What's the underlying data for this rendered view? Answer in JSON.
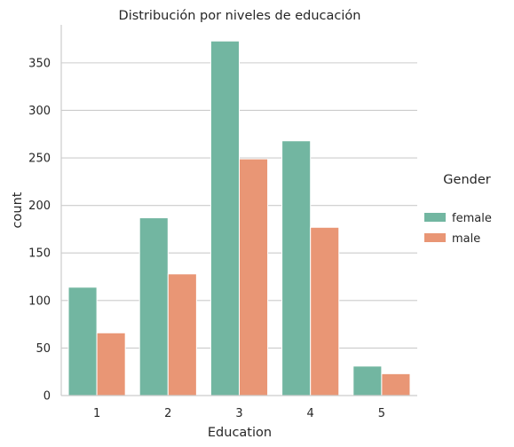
{
  "chart_data": {
    "type": "bar",
    "title": "Distribución por niveles de educación",
    "xlabel": "Education",
    "ylabel": "count",
    "categories": [
      "1",
      "2",
      "3",
      "4",
      "5"
    ],
    "series": [
      {
        "name": "female",
        "color": "#72b6a1",
        "values": [
          114,
          187,
          373,
          268,
          31
        ]
      },
      {
        "name": "male",
        "color": "#e99675",
        "values": [
          66,
          128,
          249,
          177,
          23
        ]
      }
    ],
    "ylim": [
      0,
      390
    ],
    "yticks": [
      0,
      50,
      100,
      150,
      200,
      250,
      300,
      350
    ],
    "grid": "horizontal",
    "legend": {
      "title": "Gender",
      "placement": "right"
    }
  }
}
